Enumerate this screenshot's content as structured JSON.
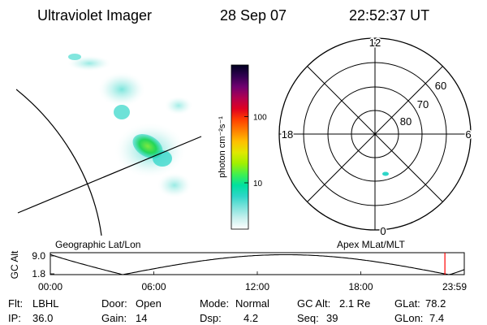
{
  "header": {
    "instrument": "Ultraviolet Imager",
    "date": "28 Sep 07",
    "time": "22:52:37 UT"
  },
  "colorbar": {
    "label": "photon cm⁻²s⁻¹",
    "ticks": [
      {
        "label": "100",
        "value": 100
      },
      {
        "label": "10",
        "value": 10
      }
    ],
    "range": [
      2,
      600
    ],
    "colors": [
      "#ffffff",
      "#c8f0ee",
      "#7fe3dc",
      "#2fd6c8",
      "#00e0a0",
      "#40f050",
      "#a0f000",
      "#e0e800",
      "#ffc000",
      "#ff8000",
      "#ff4000",
      "#e00020",
      "#b00050",
      "#700070",
      "#300050",
      "#000020"
    ]
  },
  "geo_map": {
    "label": "Geographic Lat/Lon",
    "aurora_color": "#22d65a",
    "glow_color": "#7fe3dc"
  },
  "polar_plot": {
    "label": "Apex  MLat/MLT",
    "mlt_labels": {
      "top": "12",
      "left": "18",
      "right": "6",
      "bottom": "0"
    },
    "mlat_labels": [
      "60",
      "70",
      "80"
    ],
    "mlat_values": [
      60,
      70,
      80
    ]
  },
  "orbit": {
    "ylabel": "GC Alt",
    "y_ticks": [
      "9.0",
      "1.8"
    ],
    "y_tick_values": [
      9.0,
      1.8
    ],
    "x_ticks": [
      "00:00",
      "06:00",
      "12:00",
      "18:00",
      "23:59"
    ],
    "marker_time_hours": 22.877,
    "marker_color": "#ff0000"
  },
  "status": {
    "row1": [
      {
        "label": "Flt:",
        "value": "LBHL"
      },
      {
        "label": "Door:",
        "value": "Open"
      },
      {
        "label": "Mode:",
        "value": "Normal"
      },
      {
        "label": "GC Alt:",
        "value": "2.1 Re"
      },
      {
        "label": "GLat:",
        "value": "78.2"
      }
    ],
    "row2": [
      {
        "label": "IP:",
        "value": "36.0"
      },
      {
        "label": "Gain:",
        "value": "14"
      },
      {
        "label": "Dsp:",
        "value": "4.2"
      },
      {
        "label": "Seq:",
        "value": "39"
      },
      {
        "label": "GLon:",
        "value": "7.4"
      }
    ]
  }
}
